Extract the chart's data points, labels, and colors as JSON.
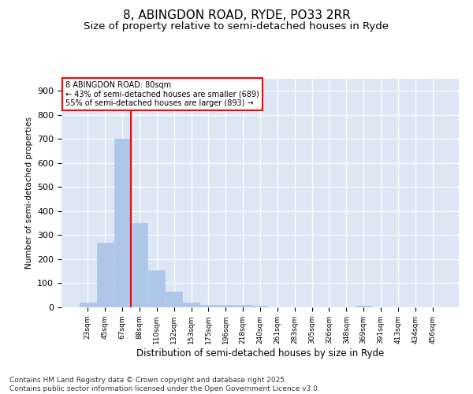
{
  "title": "8, ABINGDON ROAD, RYDE, PO33 2RR",
  "subtitle": "Size of property relative to semi-detached houses in Ryde",
  "xlabel": "Distribution of semi-detached houses by size in Ryde",
  "ylabel": "Number of semi-detached properties",
  "categories": [
    "23sqm",
    "45sqm",
    "67sqm",
    "88sqm",
    "110sqm",
    "132sqm",
    "153sqm",
    "175sqm",
    "196sqm",
    "218sqm",
    "240sqm",
    "261sqm",
    "283sqm",
    "305sqm",
    "326sqm",
    "348sqm",
    "369sqm",
    "391sqm",
    "413sqm",
    "434sqm",
    "456sqm"
  ],
  "values": [
    20,
    270,
    700,
    350,
    155,
    65,
    20,
    10,
    10,
    10,
    5,
    0,
    0,
    0,
    0,
    0,
    5,
    0,
    0,
    0,
    0
  ],
  "bar_color": "#aec6e8",
  "bar_edge_color": "#aec6e8",
  "vline_x": 2.5,
  "vline_color": "red",
  "annotation_text": "8 ABINGDON ROAD: 80sqm\n← 43% of semi-detached houses are smaller (689)\n55% of semi-detached houses are larger (893) →",
  "annotation_box_color": "red",
  "annotation_text_color": "black",
  "annotation_bg_color": "white",
  "ylim": [
    0,
    950
  ],
  "yticks": [
    0,
    100,
    200,
    300,
    400,
    500,
    600,
    700,
    800,
    900
  ],
  "background_color": "#dce6f5",
  "grid_color": "white",
  "title_fontsize": 11,
  "subtitle_fontsize": 9.5,
  "footer_text": "Contains HM Land Registry data © Crown copyright and database right 2025.\nContains public sector information licensed under the Open Government Licence v3.0.",
  "footer_fontsize": 6.5
}
